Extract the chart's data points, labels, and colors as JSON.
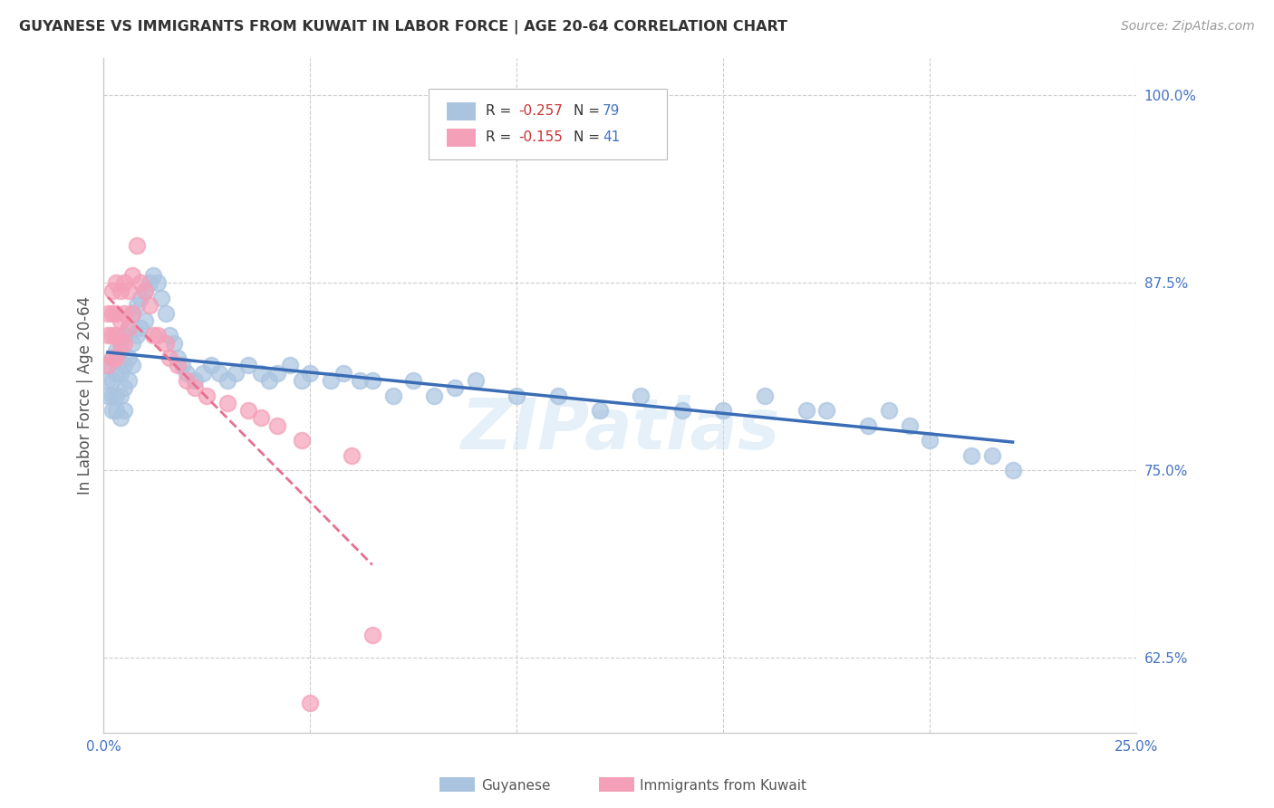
{
  "title": "GUYANESE VS IMMIGRANTS FROM KUWAIT IN LABOR FORCE | AGE 20-64 CORRELATION CHART",
  "source": "Source: ZipAtlas.com",
  "ylabel": "In Labor Force | Age 20-64",
  "xlim": [
    0.0,
    0.25
  ],
  "ylim": [
    0.575,
    1.025
  ],
  "yticks_right": [
    0.625,
    0.75,
    0.875,
    1.0
  ],
  "blue_color": "#aac4e0",
  "pink_color": "#f4a0b8",
  "blue_line_color": "#3a6db5",
  "pink_line_color": "#e87090",
  "watermark": "ZIPatlas",
  "legend_label1": "Guyanese",
  "legend_label2": "Immigrants from Kuwait",
  "legend_R1": "-0.257",
  "legend_N1": "79",
  "legend_R2": "-0.155",
  "legend_N2": "41",
  "blue_x": [
    0.001,
    0.001,
    0.001,
    0.002,
    0.002,
    0.002,
    0.002,
    0.003,
    0.003,
    0.003,
    0.003,
    0.004,
    0.004,
    0.004,
    0.004,
    0.005,
    0.005,
    0.005,
    0.005,
    0.006,
    0.006,
    0.006,
    0.007,
    0.007,
    0.007,
    0.008,
    0.008,
    0.009,
    0.009,
    0.01,
    0.01,
    0.011,
    0.012,
    0.013,
    0.014,
    0.015,
    0.016,
    0.017,
    0.018,
    0.019,
    0.02,
    0.022,
    0.024,
    0.026,
    0.028,
    0.03,
    0.032,
    0.035,
    0.038,
    0.04,
    0.042,
    0.045,
    0.048,
    0.05,
    0.055,
    0.058,
    0.062,
    0.065,
    0.07,
    0.075,
    0.08,
    0.085,
    0.09,
    0.1,
    0.11,
    0.12,
    0.13,
    0.14,
    0.15,
    0.16,
    0.17,
    0.175,
    0.185,
    0.19,
    0.195,
    0.2,
    0.21,
    0.215,
    0.22
  ],
  "blue_y": [
    0.82,
    0.81,
    0.8,
    0.825,
    0.81,
    0.8,
    0.79,
    0.83,
    0.815,
    0.8,
    0.79,
    0.83,
    0.815,
    0.8,
    0.785,
    0.84,
    0.82,
    0.805,
    0.79,
    0.845,
    0.825,
    0.81,
    0.855,
    0.835,
    0.82,
    0.86,
    0.84,
    0.865,
    0.845,
    0.87,
    0.85,
    0.875,
    0.88,
    0.875,
    0.865,
    0.855,
    0.84,
    0.835,
    0.825,
    0.82,
    0.815,
    0.81,
    0.815,
    0.82,
    0.815,
    0.81,
    0.815,
    0.82,
    0.815,
    0.81,
    0.815,
    0.82,
    0.81,
    0.815,
    0.81,
    0.815,
    0.81,
    0.81,
    0.8,
    0.81,
    0.8,
    0.805,
    0.81,
    0.8,
    0.8,
    0.79,
    0.8,
    0.79,
    0.79,
    0.8,
    0.79,
    0.79,
    0.78,
    0.79,
    0.78,
    0.77,
    0.76,
    0.76,
    0.75
  ],
  "pink_x": [
    0.001,
    0.001,
    0.001,
    0.002,
    0.002,
    0.002,
    0.002,
    0.003,
    0.003,
    0.003,
    0.003,
    0.004,
    0.004,
    0.004,
    0.005,
    0.005,
    0.005,
    0.006,
    0.006,
    0.007,
    0.007,
    0.008,
    0.009,
    0.01,
    0.011,
    0.012,
    0.013,
    0.015,
    0.016,
    0.018,
    0.02,
    0.022,
    0.025,
    0.03,
    0.035,
    0.038,
    0.042,
    0.048,
    0.06,
    0.065,
    0.05
  ],
  "pink_y": [
    0.855,
    0.84,
    0.82,
    0.87,
    0.855,
    0.84,
    0.825,
    0.875,
    0.855,
    0.84,
    0.825,
    0.87,
    0.85,
    0.835,
    0.875,
    0.855,
    0.835,
    0.87,
    0.845,
    0.88,
    0.855,
    0.9,
    0.875,
    0.87,
    0.86,
    0.84,
    0.84,
    0.835,
    0.825,
    0.82,
    0.81,
    0.805,
    0.8,
    0.795,
    0.79,
    0.785,
    0.78,
    0.77,
    0.76,
    0.64,
    0.595
  ]
}
